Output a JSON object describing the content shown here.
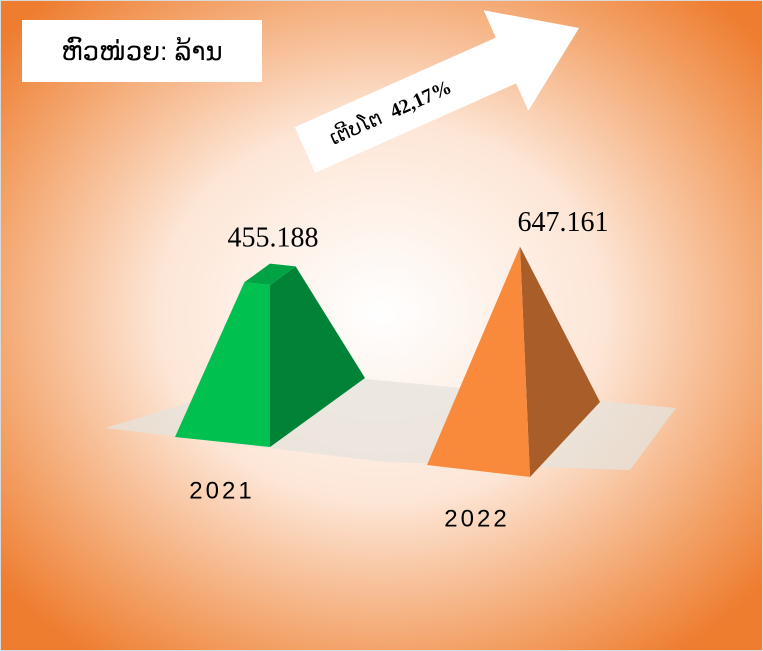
{
  "chart_data": {
    "type": "pyramid",
    "unit_label": "ຫົວໜ່ວຍ: ລ້ານ",
    "annotation": "ເຕີບໂຕ",
    "growth_label": "42,17%",
    "categories": [
      "2021",
      "2022"
    ],
    "values": [
      455.188,
      647.161
    ],
    "colors": [
      "#00c050",
      "#f98a3c"
    ]
  }
}
